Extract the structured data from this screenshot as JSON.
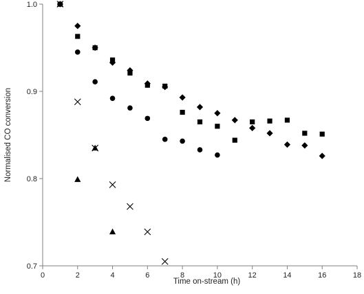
{
  "chart_data": {
    "type": "scatter",
    "xlabel": "Time on-stream (h)",
    "ylabel": "Normalised CO conversion",
    "xlim": [
      0,
      18
    ],
    "ylim": [
      0.7,
      1.0
    ],
    "xticks": [
      0,
      2,
      4,
      6,
      8,
      10,
      12,
      14,
      16,
      18
    ],
    "xtick_labels": [
      "0",
      "2",
      "4",
      "6",
      "8",
      "10",
      "12",
      "14",
      "16",
      "18"
    ],
    "yticks": [
      0.7,
      0.8,
      0.9,
      1.0
    ],
    "ytick_labels": [
      "0.7",
      "0.8",
      "0.9",
      "1.0"
    ],
    "grid": false,
    "legend": "none",
    "series": [
      {
        "marker": "diamond",
        "color": "#000000",
        "x": [
          1,
          2,
          3,
          4,
          5,
          6,
          7,
          8,
          9,
          10,
          11,
          12,
          13,
          14,
          15,
          16
        ],
        "y": [
          1.0,
          0.975,
          0.95,
          0.933,
          0.924,
          0.909,
          0.905,
          0.893,
          0.882,
          0.875,
          0.867,
          0.858,
          0.852,
          0.839,
          0.838,
          0.826
        ]
      },
      {
        "marker": "square",
        "color": "#000000",
        "x": [
          1,
          2,
          3,
          4,
          5,
          6,
          7,
          8,
          9,
          10,
          11,
          12,
          13,
          14,
          15,
          16
        ],
        "y": [
          1.0,
          0.963,
          0.95,
          0.936,
          0.921,
          0.907,
          0.906,
          0.876,
          0.865,
          0.86,
          0.844,
          0.865,
          0.866,
          0.867,
          0.852,
          0.851
        ]
      },
      {
        "marker": "circle",
        "color": "#000000",
        "x": [
          1,
          2,
          3,
          4,
          5,
          6,
          7,
          8,
          9,
          10
        ],
        "y": [
          1.0,
          0.945,
          0.911,
          0.892,
          0.881,
          0.869,
          0.845,
          0.843,
          0.833,
          0.827
        ]
      },
      {
        "marker": "triangle",
        "color": "#000000",
        "x": [
          1,
          2,
          3,
          4
        ],
        "y": [
          1.0,
          0.799,
          0.835,
          0.739
        ]
      },
      {
        "marker": "cross",
        "color": "#000000",
        "x": [
          1,
          2,
          3,
          4,
          5,
          6,
          7
        ],
        "y": [
          1.0,
          0.888,
          0.835,
          0.793,
          0.768,
          0.739,
          0.705
        ]
      }
    ]
  }
}
